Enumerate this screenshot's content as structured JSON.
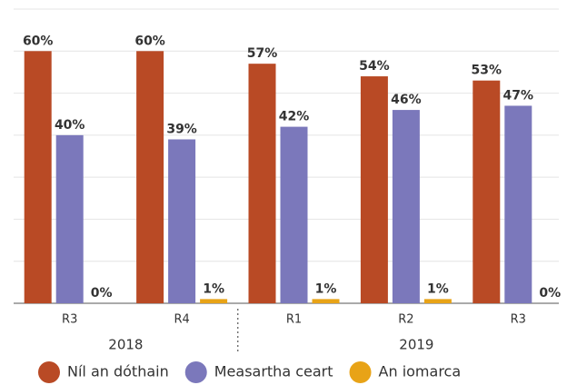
{
  "chart_data": {
    "type": "bar",
    "categories": [
      "R3",
      "R4",
      "R1",
      "R2",
      "R3"
    ],
    "groups": [
      {
        "label": "2018",
        "size": 2
      },
      {
        "label": "2019",
        "size": 3
      }
    ],
    "series": [
      {
        "name": "Níl an dóthain",
        "color": "#b94a25",
        "values": [
          60,
          60,
          57,
          54,
          53
        ],
        "value_labels": [
          "60%",
          "60%",
          "57%",
          "54%",
          "53%"
        ]
      },
      {
        "name": "Measartha ceart",
        "color": "#7b78bb",
        "values": [
          40,
          39,
          42,
          46,
          47
        ],
        "value_labels": [
          "40%",
          "39%",
          "42%",
          "46%",
          "47%"
        ]
      },
      {
        "name": "An iomarca",
        "color": "#e8a317",
        "values": [
          0,
          1,
          1,
          1,
          0
        ],
        "value_labels": [
          "0%",
          "1%",
          "1%",
          "1%",
          "0%"
        ]
      }
    ],
    "ylim": [
      0,
      70
    ],
    "yticks": [
      0,
      10,
      20,
      30,
      40,
      50,
      60,
      70
    ],
    "grid": true,
    "legend": "bottom"
  }
}
